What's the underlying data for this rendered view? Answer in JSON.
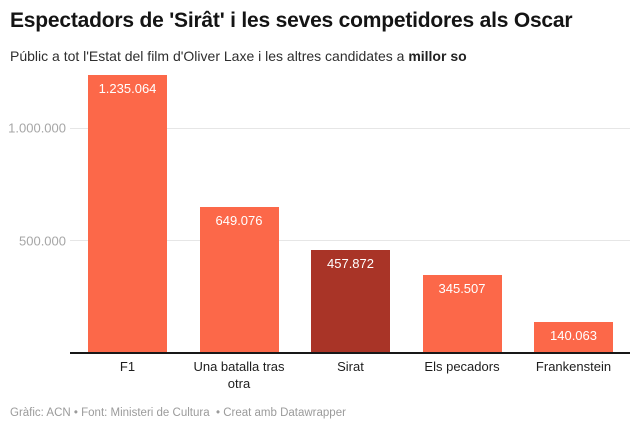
{
  "header": {
    "title": "Espectadors de 'Sirât' i les seves competidores als Oscar",
    "subtitle": "Públic a tot l'Estat del film d'Oliver Laxe i les altres candidates a ",
    "subtitle_bold": "millor so"
  },
  "chart_data": {
    "type": "bar",
    "title": "Espectadors de 'Sirât' i les seves competidores als Oscar",
    "subtitle": "Públic a tot l'Estat del film d'Oliver Laxe i les altres candidates a millor so",
    "categories": [
      "F1",
      "Una batalla tras otra",
      "Sirat",
      "Els pecadors",
      "Frankenstein"
    ],
    "values": [
      1235064,
      649076,
      457872,
      345507,
      140063
    ],
    "value_labels": [
      "1.235.064",
      "649.076",
      "457.872",
      "345.507",
      "140.063"
    ],
    "bar_colors": [
      "#fc6849",
      "#fc6849",
      "#a93427",
      "#fc6849",
      "#fc6849"
    ],
    "highlight_index": 2,
    "highlight_category": "Sirat",
    "xlabel": "",
    "ylabel": "",
    "ylim": [
      0,
      1258000
    ],
    "y_ticks": [
      {
        "value": 500000,
        "label": "500.000"
      },
      {
        "value": 1000000,
        "label": "1.000.000"
      }
    ],
    "grid": "horizontal",
    "legend": "none",
    "colors": {
      "default_bar": "#fc6849",
      "highlight_bar": "#a93427",
      "baseline": "#181818",
      "gridline": "#e6e6e6",
      "y_tick_text": "#a6a6a6",
      "x_tick_text": "#1d1d1d",
      "value_label_text": "#ffffff"
    }
  },
  "footer": {
    "credit": "Gràfic: ACN • Font: Ministeri de Cultura  • Creat amb Datawrapper"
  }
}
